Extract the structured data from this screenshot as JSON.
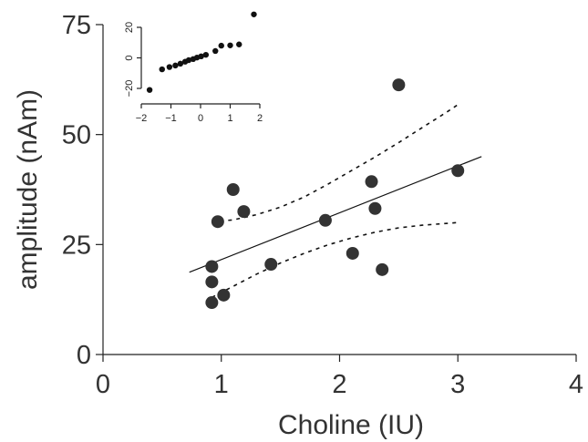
{
  "chart_data": [
    {
      "type": "scatter",
      "xlabel": "Choline (IU)",
      "ylabel": "amplitude (nAm)",
      "xlim": [
        0,
        4
      ],
      "ylim": [
        0,
        75
      ],
      "xticks": [
        0,
        1,
        2,
        3,
        4
      ],
      "yticks": [
        0,
        25,
        50,
        75
      ],
      "x_tick_labels": [
        "0",
        "1",
        "2",
        "3",
        "4"
      ],
      "y_tick_labels": [
        "0",
        "25",
        "50",
        "75"
      ],
      "points": [
        {
          "x": 0.92,
          "y": 20.0
        },
        {
          "x": 0.92,
          "y": 16.5
        },
        {
          "x": 0.92,
          "y": 11.8
        },
        {
          "x": 0.97,
          "y": 30.2
        },
        {
          "x": 1.02,
          "y": 13.5
        },
        {
          "x": 1.1,
          "y": 37.5
        },
        {
          "x": 1.19,
          "y": 32.5
        },
        {
          "x": 1.42,
          "y": 20.5
        },
        {
          "x": 1.88,
          "y": 30.5
        },
        {
          "x": 2.11,
          "y": 23.0
        },
        {
          "x": 2.27,
          "y": 39.3
        },
        {
          "x": 2.3,
          "y": 33.2
        },
        {
          "x": 2.36,
          "y": 19.3
        },
        {
          "x": 2.5,
          "y": 61.3
        },
        {
          "x": 3.0,
          "y": 41.8
        }
      ],
      "fit_line": {
        "x": [
          0.73,
          3.2
        ],
        "y": [
          18.7,
          45.0
        ]
      },
      "ci_upper": {
        "x": [
          0.92,
          1.1,
          1.3,
          1.5,
          1.7,
          1.9,
          2.1,
          2.3,
          2.5,
          2.7,
          2.9,
          3.0
        ],
        "y": [
          30.2,
          30.6,
          31.8,
          33.5,
          35.8,
          38.7,
          41.8,
          44.9,
          48.2,
          51.6,
          55.0,
          56.8
        ]
      },
      "ci_lower": {
        "x": [
          0.92,
          1.1,
          1.3,
          1.5,
          1.7,
          1.9,
          2.1,
          2.3,
          2.5,
          2.7,
          2.9,
          3.0
        ],
        "y": [
          13.0,
          15.5,
          18.3,
          20.8,
          23.0,
          24.9,
          26.5,
          27.8,
          28.8,
          29.4,
          29.8,
          30.0
        ]
      },
      "grid": false
    },
    {
      "type": "scatter",
      "xlim": [
        -2,
        2
      ],
      "ylim": [
        -20,
        20
      ],
      "xticks": [
        -2,
        -1,
        0,
        1,
        2
      ],
      "yticks": [
        -20,
        0,
        20
      ],
      "x_tick_labels": [
        "−2",
        "−1",
        "0",
        "1",
        "2"
      ],
      "y_tick_labels": [
        "−20",
        "0",
        "20"
      ],
      "points": [
        {
          "x": -1.72,
          "y": -21.0
        },
        {
          "x": -1.3,
          "y": -7.5
        },
        {
          "x": -1.05,
          "y": -6.0
        },
        {
          "x": -0.85,
          "y": -5.0
        },
        {
          "x": -0.68,
          "y": -3.8
        },
        {
          "x": -0.52,
          "y": -2.5
        },
        {
          "x": -0.4,
          "y": -1.5
        },
        {
          "x": -0.25,
          "y": -0.8
        },
        {
          "x": -0.12,
          "y": 0.2
        },
        {
          "x": 0.02,
          "y": 1.0
        },
        {
          "x": 0.18,
          "y": 2.0
        },
        {
          "x": 0.5,
          "y": 4.5
        },
        {
          "x": 0.7,
          "y": 8.0
        },
        {
          "x": 1.0,
          "y": 8.2
        },
        {
          "x": 1.3,
          "y": 8.8
        },
        {
          "x": 1.8,
          "y": 28.5
        }
      ],
      "grid": false
    }
  ]
}
